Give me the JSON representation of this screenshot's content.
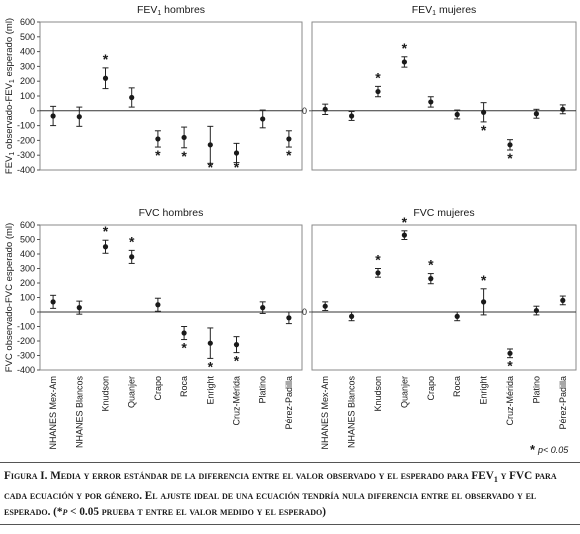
{
  "figure": {
    "caption_lead": "Figura I.",
    "caption_text": "Media y error estándar de la diferencia entre el valor observado y el esperado para FEV",
    "caption_sub": "1",
    "caption_text2": " y FVC para cada ecuación y por género. El ajuste ideal de una ecuación tendría nula diferencia entre el observado y el esperado. (*",
    "caption_p": "p",
    "caption_text3": " < 0.05 prueba t entre el valor medido y el esperado)",
    "significance_note": "p< 0.05",
    "significance_star": "*",
    "star_symbol": "*"
  },
  "chart_data": [
    {
      "type": "scatter",
      "panel": "top-left",
      "title": "FEV",
      "title_sub": "1",
      "title_rest": " hombres",
      "ylabel": "FEV",
      "ylabel_sub": "1",
      "ylabel_rest": " observado-FEV",
      "ylabel_sub2": "1",
      "ylabel_rest2": " esperado (ml)",
      "ylim": [
        -400,
        600
      ],
      "yticks": [
        "-400",
        "-300",
        "-200",
        "-100",
        "0",
        "100",
        "200",
        "300",
        "400",
        "500",
        "600"
      ],
      "categories": [
        "NHANES Mex-Am",
        "NHANES Blancos",
        "Knudson",
        "Quanjer",
        "Crapo",
        "Roca",
        "Enright",
        "Cruz-Mérida",
        "Platino",
        "Pérez-Padilla"
      ],
      "means": [
        -35,
        -40,
        220,
        90,
        -190,
        -180,
        -230,
        -285,
        -55,
        -190
      ],
      "errors": [
        65,
        65,
        70,
        65,
        55,
        70,
        125,
        65,
        60,
        55
      ],
      "significant": [
        false,
        false,
        true,
        false,
        true,
        true,
        true,
        true,
        false,
        true
      ]
    },
    {
      "type": "scatter",
      "panel": "top-right",
      "title": "FEV",
      "title_sub": "1",
      "title_rest": " mujeres",
      "ylim": [
        -400,
        600
      ],
      "yticks": [
        "0"
      ],
      "categories": [
        "NHANES Mex-Am",
        "NHANES Blancos",
        "Knudson",
        "Quanjer",
        "Crapo",
        "Roca",
        "Enright",
        "Cruz-Mérida",
        "Platino",
        "Pérez-Padilla"
      ],
      "means": [
        10,
        -35,
        130,
        330,
        60,
        -25,
        -10,
        -230,
        -20,
        10
      ],
      "errors": [
        35,
        30,
        35,
        35,
        35,
        30,
        65,
        35,
        30,
        30
      ],
      "significant": [
        false,
        false,
        true,
        true,
        false,
        false,
        true,
        true,
        false,
        false
      ]
    },
    {
      "type": "scatter",
      "panel": "bottom-left",
      "title": "FVC hombres",
      "ylabel": "FVC observado-FVC esperado (ml)",
      "ylim": [
        -400,
        600
      ],
      "yticks": [
        "-400",
        "-300",
        "-200",
        "-100",
        "0",
        "100",
        "200",
        "300",
        "400",
        "500",
        "600"
      ],
      "categories": [
        "NHANES Mex-Am",
        "NHANES Blancos",
        "Knudson",
        "Quanjer",
        "Crapo",
        "Roca",
        "Enright",
        "Cruz-Mérida",
        "Platino",
        "Pérez-Padilla"
      ],
      "means": [
        70,
        30,
        450,
        380,
        50,
        -145,
        -215,
        -225,
        30,
        -40
      ],
      "errors": [
        45,
        45,
        45,
        45,
        45,
        45,
        105,
        55,
        40,
        40
      ],
      "significant": [
        false,
        false,
        true,
        true,
        false,
        true,
        true,
        true,
        false,
        false
      ]
    },
    {
      "type": "scatter",
      "panel": "bottom-right",
      "title": "FVC mujeres",
      "ylim": [
        -400,
        600
      ],
      "yticks": [
        "0"
      ],
      "categories": [
        "NHANES Mex-Am",
        "NHANES Blancos",
        "Knudson",
        "Quanjer",
        "Crapo",
        "Roca",
        "Enright",
        "Cruz-Mérida",
        "Platino",
        "Pérez-Padilla"
      ],
      "means": [
        40,
        -30,
        270,
        530,
        230,
        -30,
        70,
        -285,
        10,
        80
      ],
      "errors": [
        30,
        30,
        30,
        30,
        35,
        30,
        90,
        30,
        30,
        30
      ],
      "significant": [
        false,
        false,
        true,
        true,
        true,
        false,
        true,
        true,
        false,
        false
      ]
    }
  ]
}
